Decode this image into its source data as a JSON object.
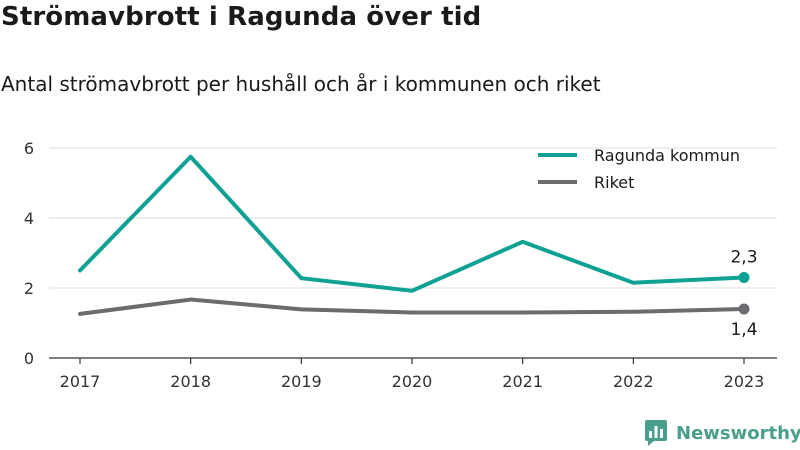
{
  "title": "Strömavbrott i Ragunda över tid",
  "subtitle": "Antal strömavbrott per hushåll och år i kommunen och riket",
  "brand": {
    "name": "Newsworthy",
    "color": "#4a9e8c"
  },
  "chart_data": {
    "type": "line",
    "x": [
      "2017",
      "2018",
      "2019",
      "2020",
      "2021",
      "2022",
      "2023"
    ],
    "ylim": [
      0,
      6
    ],
    "yticks": [
      "0",
      "2",
      "4",
      "6"
    ],
    "grid": true,
    "legend_position": "top-right",
    "series": [
      {
        "name": "Ragunda kommun",
        "color": "#0fa294",
        "values": [
          2.5,
          5.75,
          2.28,
          1.92,
          3.32,
          2.15,
          2.3
        ],
        "end_label": "2,3",
        "end_label_position": "above"
      },
      {
        "name": "Riket",
        "color": "#6b6b70",
        "values": [
          1.26,
          1.67,
          1.39,
          1.3,
          1.3,
          1.32,
          1.4
        ],
        "end_label": "1,4",
        "end_label_position": "below"
      }
    ]
  }
}
